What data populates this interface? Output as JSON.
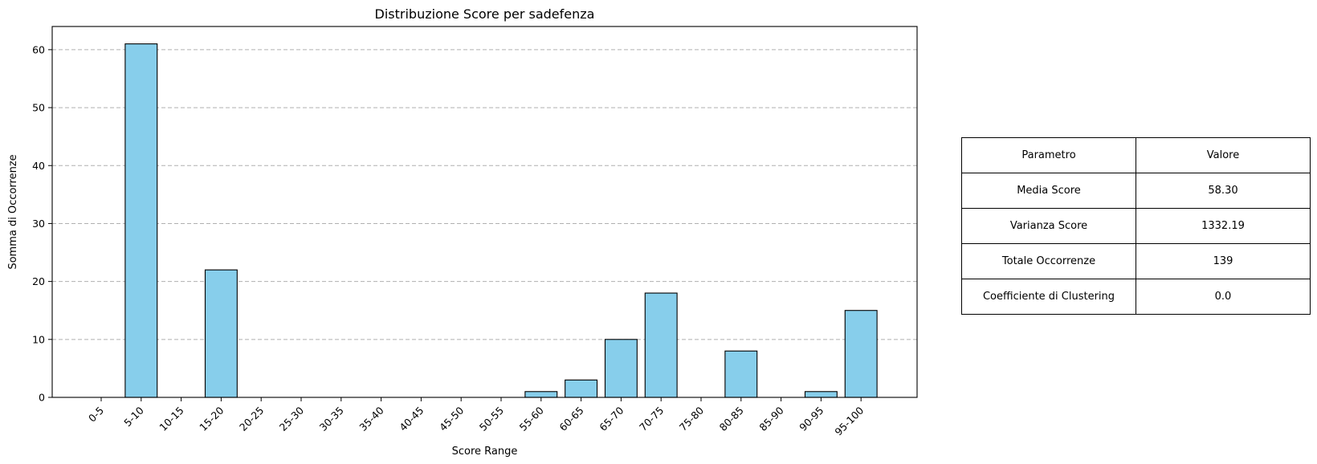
{
  "chart_data": {
    "type": "bar",
    "title": "Distribuzione Score per sadefenza",
    "xlabel": "Score Range",
    "ylabel": "Somma di Occorrenze",
    "categories": [
      "0-5",
      "5-10",
      "10-15",
      "15-20",
      "20-25",
      "25-30",
      "30-35",
      "35-40",
      "40-45",
      "45-50",
      "50-55",
      "55-60",
      "60-65",
      "65-70",
      "70-75",
      "75-80",
      "80-85",
      "85-90",
      "90-95",
      "95-100"
    ],
    "values": [
      0,
      61,
      0,
      22,
      0,
      0,
      0,
      0,
      0,
      0,
      0,
      1,
      3,
      10,
      18,
      0,
      8,
      0,
      1,
      15
    ],
    "ylim": [
      0,
      64
    ],
    "yticks": [
      0,
      10,
      20,
      30,
      40,
      50,
      60
    ],
    "grid": "y, dashed",
    "bar_color": "#87ceeb",
    "edge_color": "#000000",
    "grid_color": "#b0b0b0"
  },
  "table": {
    "header": [
      "Parametro",
      "Valore"
    ],
    "rows": [
      [
        "Media Score",
        "58.30"
      ],
      [
        "Varianza Score",
        "1332.19"
      ],
      [
        "Totale Occorrenze",
        "139"
      ],
      [
        "Coefficiente di Clustering",
        "0.0"
      ]
    ]
  }
}
